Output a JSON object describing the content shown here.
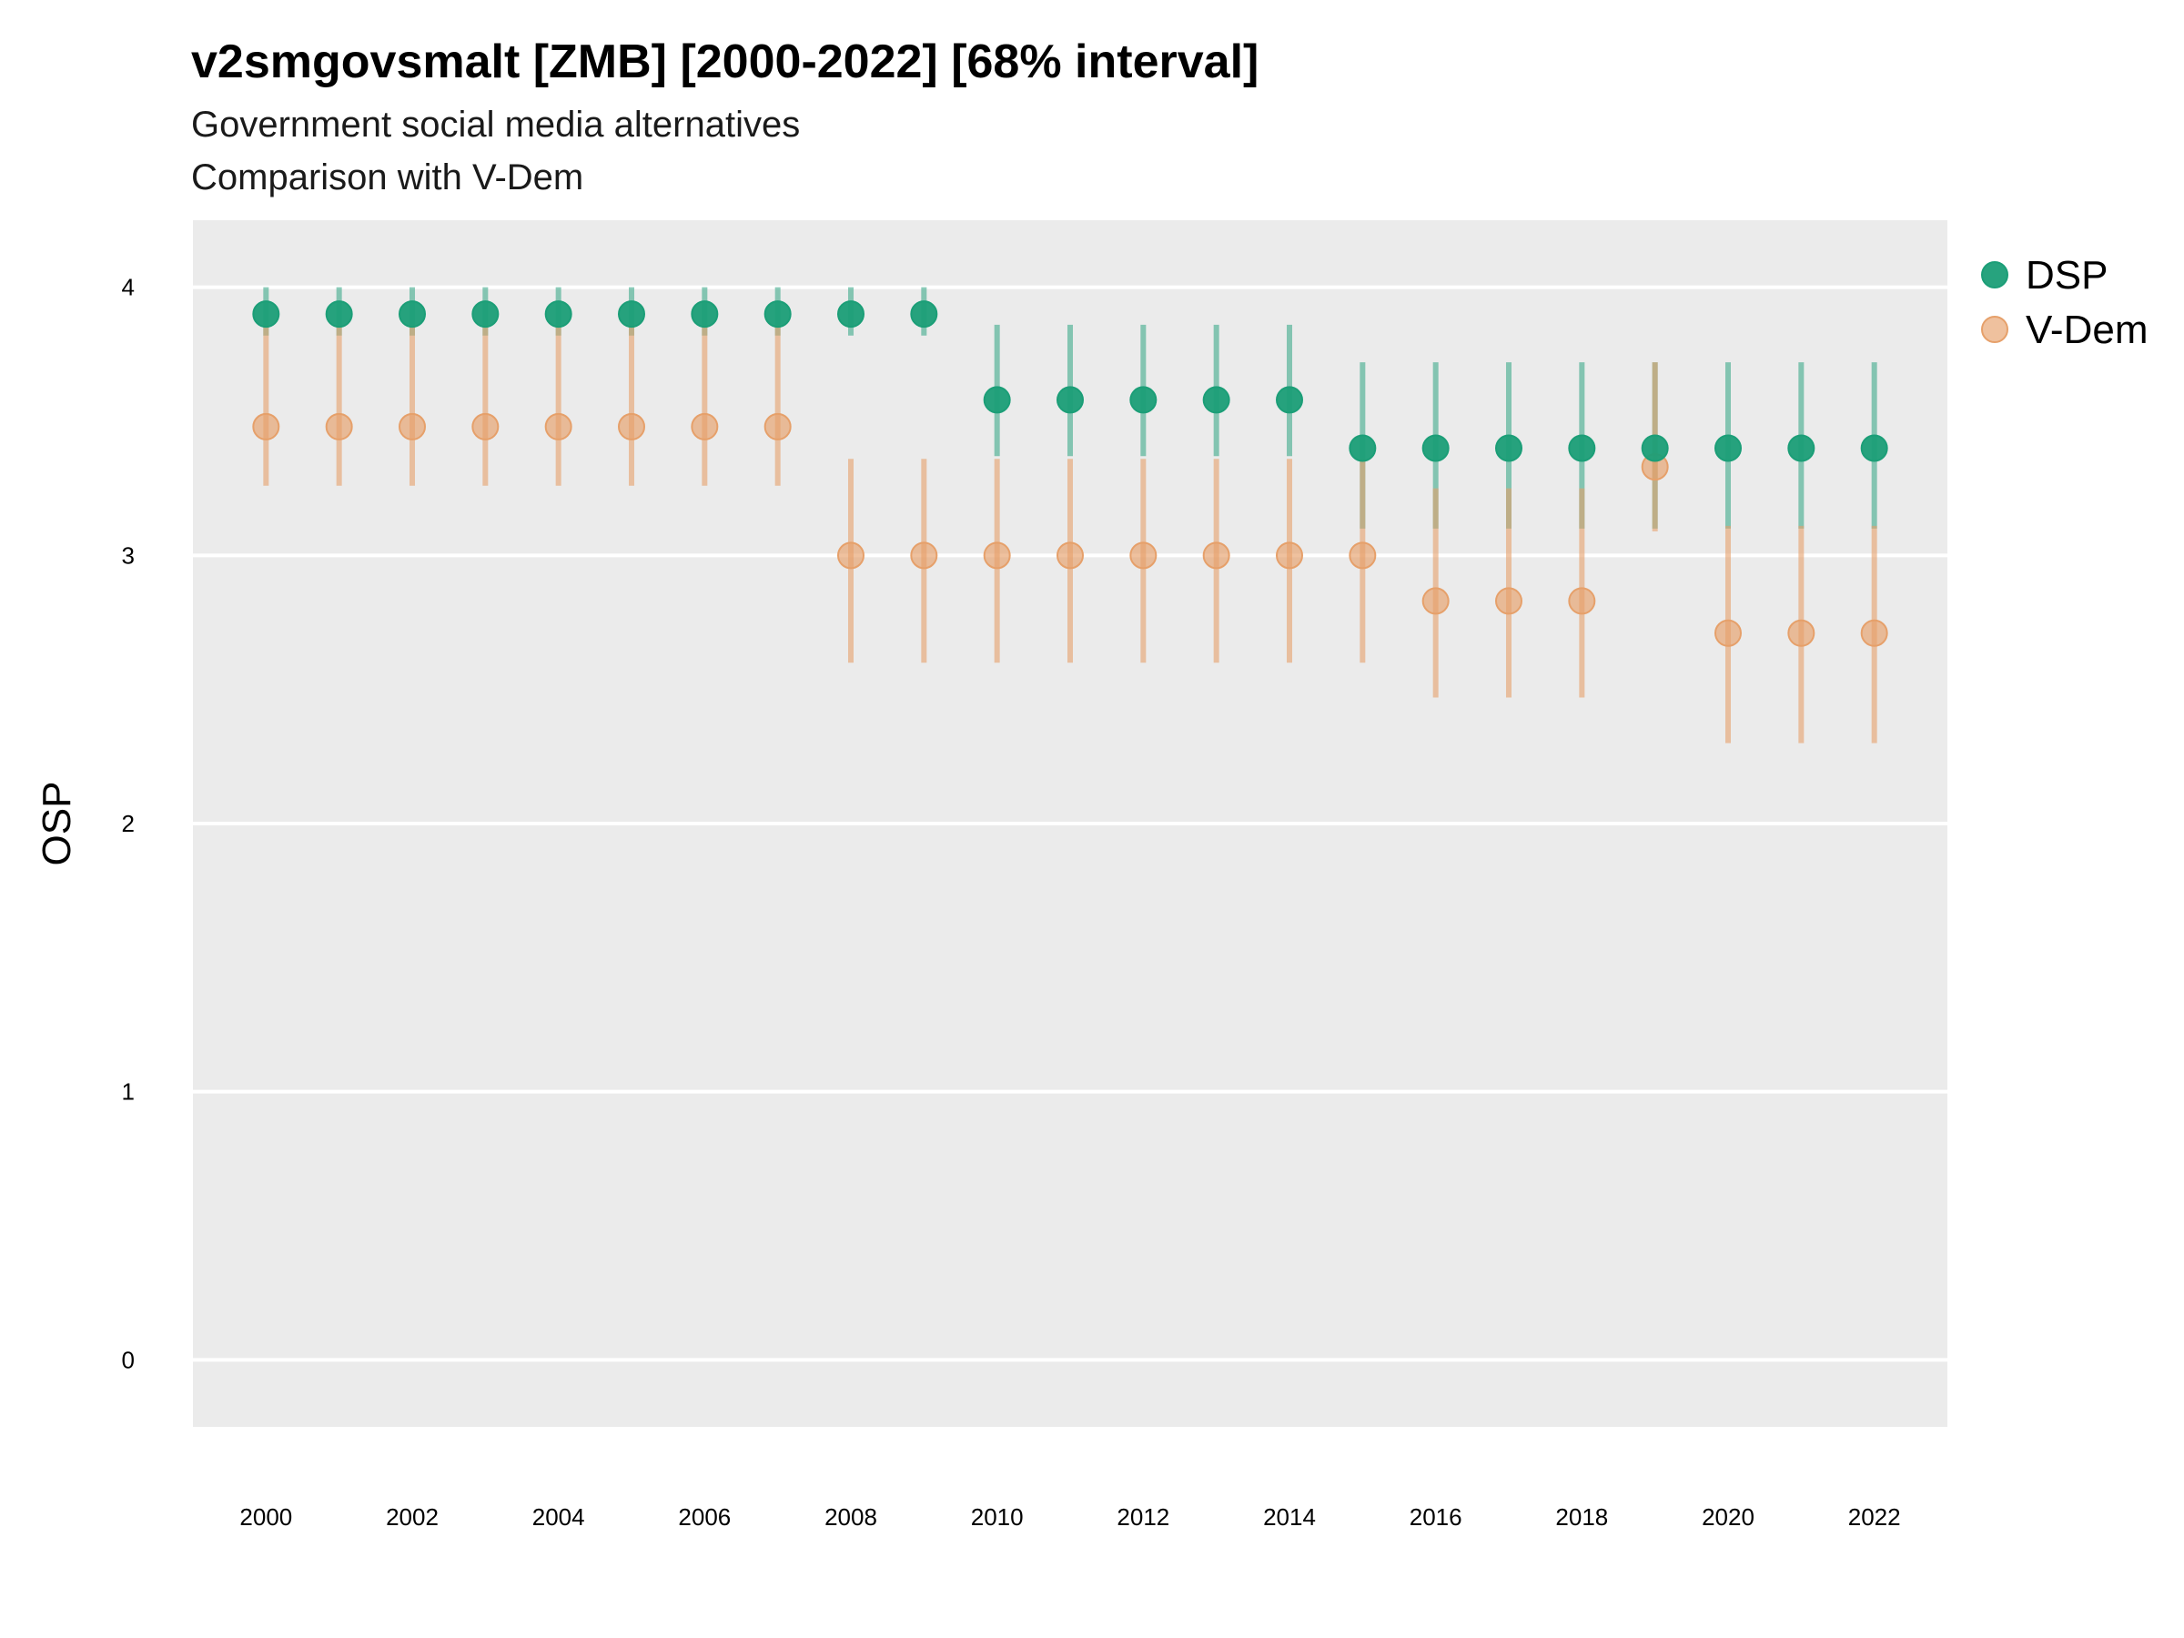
{
  "chart_data": {
    "type": "scatter",
    "title": "v2smgovsmalt [ZMB] [2000-2022] [68% interval]",
    "subtitle": "Government social media alternatives",
    "caption": "Comparison with V-Dem",
    "ylabel": "OSP",
    "xlabel": "",
    "ylim": [
      -0.25,
      4.25
    ],
    "xlim": [
      1999,
      2023
    ],
    "y_ticks": [
      "0",
      "1",
      "2",
      "3",
      "4"
    ],
    "x_ticks": [
      "2000",
      "2002",
      "2004",
      "2006",
      "2008",
      "2010",
      "2012",
      "2014",
      "2016",
      "2018",
      "2020",
      "2022"
    ],
    "grid": true,
    "legend_position": "right",
    "x": [
      2000,
      2001,
      2002,
      2003,
      2004,
      2005,
      2006,
      2007,
      2008,
      2009,
      2010,
      2011,
      2012,
      2013,
      2014,
      2015,
      2016,
      2017,
      2018,
      2019,
      2020,
      2021,
      2022
    ],
    "series": [
      {
        "name": "DSP",
        "color": "#1b9e77",
        "values": [
          3.9,
          3.9,
          3.9,
          3.9,
          3.9,
          3.9,
          3.9,
          3.9,
          3.9,
          3.9,
          3.58,
          3.58,
          3.58,
          3.58,
          3.58,
          3.4,
          3.4,
          3.4,
          3.4,
          3.4,
          3.4,
          3.4,
          3.4
        ],
        "lower": [
          3.82,
          3.82,
          3.82,
          3.82,
          3.82,
          3.82,
          3.82,
          3.82,
          3.82,
          3.82,
          3.37,
          3.37,
          3.37,
          3.37,
          3.37,
          3.1,
          3.1,
          3.1,
          3.1,
          3.1,
          3.1,
          3.1,
          3.1
        ],
        "upper": [
          4.0,
          4.0,
          4.0,
          4.0,
          4.0,
          4.0,
          4.0,
          4.0,
          4.0,
          4.0,
          3.86,
          3.86,
          3.86,
          3.86,
          3.86,
          3.72,
          3.72,
          3.72,
          3.72,
          3.72,
          3.72,
          3.72,
          3.72
        ]
      },
      {
        "name": "V-Dem",
        "color": "#e6a06a",
        "values": [
          3.48,
          3.48,
          3.48,
          3.48,
          3.48,
          3.48,
          3.48,
          3.48,
          3.0,
          3.0,
          3.0,
          3.0,
          3.0,
          3.0,
          3.0,
          3.0,
          2.83,
          2.83,
          2.83,
          3.33,
          2.71,
          2.71,
          2.71
        ],
        "lower": [
          3.26,
          3.26,
          3.26,
          3.26,
          3.26,
          3.26,
          3.26,
          3.26,
          2.6,
          2.6,
          2.6,
          2.6,
          2.6,
          2.6,
          2.6,
          2.6,
          2.47,
          2.47,
          2.47,
          3.09,
          2.3,
          2.3,
          2.3
        ],
        "upper": [
          3.86,
          3.86,
          3.86,
          3.86,
          3.86,
          3.86,
          3.86,
          3.86,
          3.36,
          3.36,
          3.36,
          3.36,
          3.36,
          3.36,
          3.36,
          3.36,
          3.25,
          3.25,
          3.25,
          3.72,
          3.11,
          3.11,
          3.11
        ]
      }
    ]
  }
}
